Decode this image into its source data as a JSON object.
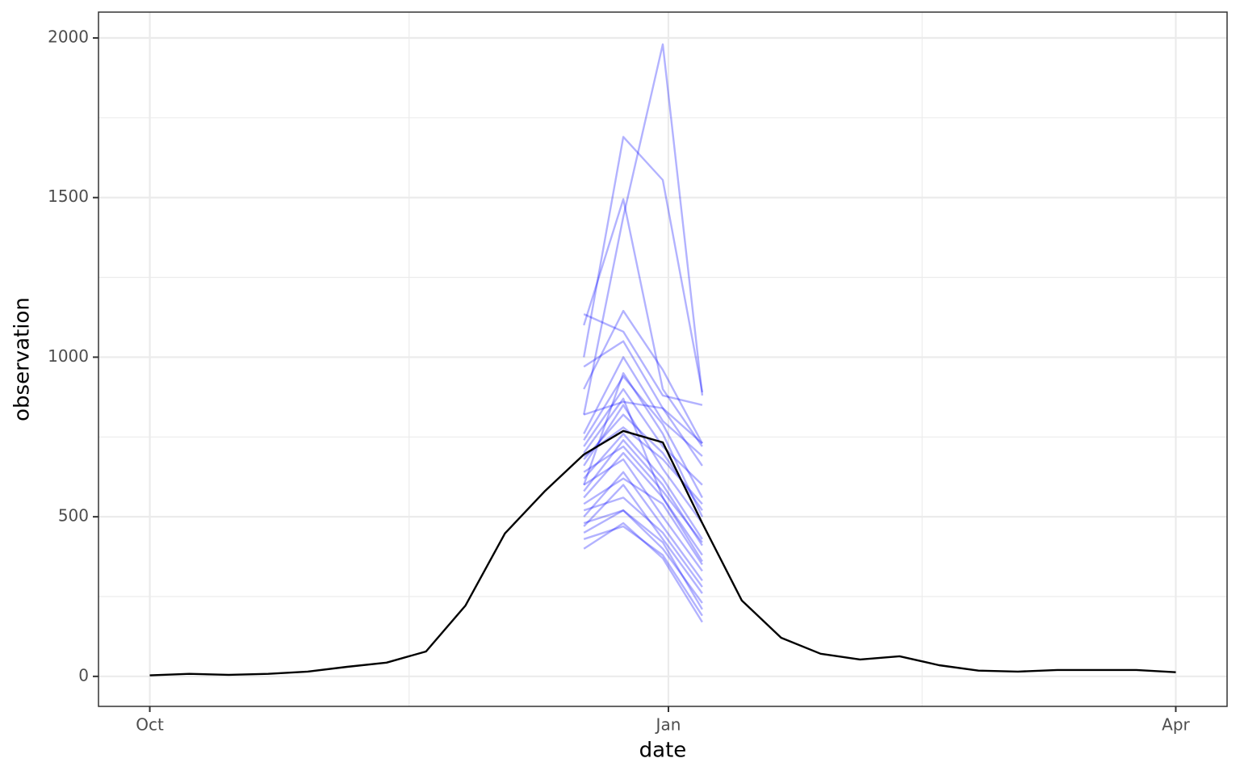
{
  "chart_data": {
    "type": "line",
    "x_label": "date",
    "y_label": "observation",
    "xlim": [
      -9.1,
      191.1
    ],
    "ylim": [
      -94,
      2081
    ],
    "xticks": [
      {
        "value": 0,
        "label": "Oct"
      },
      {
        "value": 92,
        "label": "Jan"
      },
      {
        "value": 182,
        "label": "Apr"
      }
    ],
    "minor_xticks": [
      46,
      137
    ],
    "yticks": [
      0,
      500,
      1000,
      1500,
      2000
    ],
    "minor_yticks": [
      250,
      750,
      1250,
      1750
    ],
    "grid": true,
    "series": [
      {
        "color": "#000000",
        "x": [
          0,
          7,
          14,
          21,
          28,
          35,
          42,
          49,
          56,
          63,
          70,
          77,
          84,
          91,
          98,
          105,
          112,
          119,
          126,
          133,
          140,
          147,
          154,
          161,
          168,
          175,
          182
        ],
        "values": [
          3,
          8,
          5,
          8,
          15,
          30,
          43,
          78,
          222,
          448,
          579,
          695,
          769,
          733,
          480,
          238,
          121,
          71,
          53,
          63,
          35,
          18,
          15,
          20,
          20,
          20,
          13
        ]
      }
    ],
    "samples": {
      "color": "#0000ff",
      "x": [
        77,
        84,
        91,
        98
      ],
      "values": [
        [
          1135,
          1080,
          880,
          850
        ],
        [
          1000,
          1690,
          1555,
          890
        ],
        [
          820,
          1440,
          1980,
          880
        ],
        [
          1100,
          1495,
          900,
          720
        ],
        [
          900,
          1145,
          960,
          730
        ],
        [
          970,
          1050,
          840,
          660
        ],
        [
          740,
          940,
          790,
          560
        ],
        [
          820,
          860,
          840,
          730
        ],
        [
          680,
          820,
          700,
          520
        ],
        [
          620,
          760,
          620,
          430
        ],
        [
          560,
          700,
          560,
          380
        ],
        [
          600,
          680,
          500,
          330
        ],
        [
          500,
          640,
          470,
          300
        ],
        [
          470,
          600,
          430,
          260
        ],
        [
          450,
          520,
          400,
          230
        ],
        [
          400,
          480,
          370,
          170
        ],
        [
          720,
          900,
          720,
          600
        ],
        [
          660,
          850,
          650,
          480
        ],
        [
          580,
          740,
          600,
          410
        ],
        [
          540,
          620,
          540,
          350
        ],
        [
          520,
          560,
          450,
          280
        ],
        [
          690,
          780,
          680,
          540
        ],
        [
          760,
          1000,
          800,
          690
        ],
        [
          640,
          720,
          580,
          420
        ],
        [
          480,
          520,
          420,
          210
        ],
        [
          430,
          470,
          380,
          190
        ],
        [
          600,
          950,
          760,
          500
        ],
        [
          700,
          870,
          560,
          360
        ]
      ]
    }
  }
}
